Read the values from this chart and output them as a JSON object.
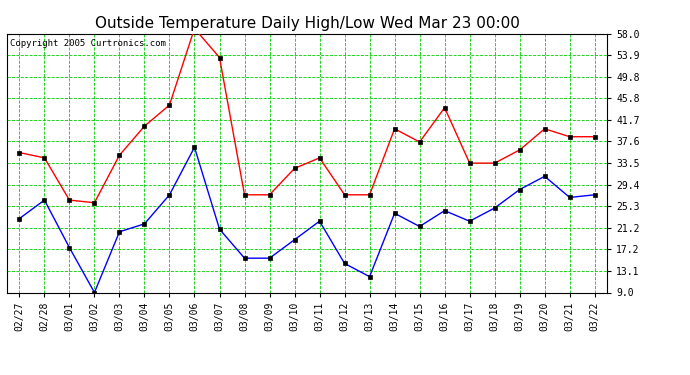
{
  "title": "Outside Temperature Daily High/Low Wed Mar 23 00:00",
  "copyright": "Copyright 2005 Curtronics.com",
  "x_labels": [
    "02/27",
    "02/28",
    "03/01",
    "03/02",
    "03/03",
    "03/04",
    "03/05",
    "03/06",
    "03/07",
    "03/08",
    "03/09",
    "03/10",
    "03/11",
    "03/12",
    "03/13",
    "03/14",
    "03/15",
    "03/16",
    "03/17",
    "03/18",
    "03/19",
    "03/20",
    "03/21",
    "03/22"
  ],
  "high_values": [
    35.5,
    34.5,
    26.5,
    26.0,
    35.0,
    40.5,
    44.5,
    59.0,
    53.5,
    27.5,
    27.5,
    32.5,
    34.5,
    27.5,
    27.5,
    40.0,
    37.5,
    44.0,
    33.5,
    33.5,
    36.0,
    40.0,
    38.5,
    38.5
  ],
  "low_values": [
    23.0,
    26.5,
    17.5,
    9.0,
    20.5,
    22.0,
    27.5,
    36.5,
    21.0,
    15.5,
    15.5,
    19.0,
    22.5,
    14.5,
    12.0,
    24.0,
    21.5,
    24.5,
    22.5,
    25.0,
    28.5,
    31.0,
    27.0,
    27.5
  ],
  "high_color": "#ff0000",
  "low_color": "#0000ff",
  "marker_color": "#000000",
  "bg_color": "#ffffff",
  "plot_bg_color": "#ffffff",
  "grid_color": "#00cc00",
  "border_color": "#000000",
  "title_color": "#000000",
  "yticks": [
    9.0,
    13.1,
    17.2,
    21.2,
    25.3,
    29.4,
    33.5,
    37.6,
    41.7,
    45.8,
    49.8,
    53.9,
    58.0
  ],
  "ymin": 9.0,
  "ymax": 58.0,
  "title_fontsize": 11,
  "tick_fontsize": 7,
  "copyright_fontsize": 6.5
}
